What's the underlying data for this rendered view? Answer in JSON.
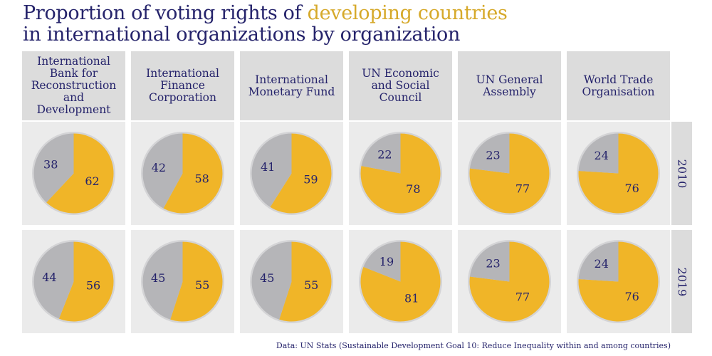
{
  "title": {
    "part1": "Proportion of voting rights of ",
    "highlight": "developing countries",
    "line2": "in international organizations by organization"
  },
  "colors": {
    "developing": "#f0b528",
    "other": "#b5b5b8",
    "text": "#25236b",
    "highlight": "#d6a92a"
  },
  "source": "Data: UN Stats (Sustainable Development Goal 10: Reduce Inequality within and among countries)",
  "chart_data": {
    "type": "pie",
    "organizations": [
      "International Bank for Reconstruction and Development",
      "International Finance Corporation",
      "International Monetary Fund",
      "UN Economic and Social Council",
      "UN General Assembly",
      "World Trade Organisation"
    ],
    "years": [
      "2010",
      "2019"
    ],
    "series": [
      {
        "name": "developing countries",
        "values_2010": [
          62,
          58,
          59,
          78,
          77,
          76
        ],
        "values_2019": [
          56,
          55,
          55,
          81,
          77,
          76
        ]
      },
      {
        "values_2010": [
          38,
          42,
          41,
          22,
          23,
          24
        ],
        "values_2019": [
          44,
          45,
          45,
          19,
          23,
          24
        ]
      }
    ]
  }
}
